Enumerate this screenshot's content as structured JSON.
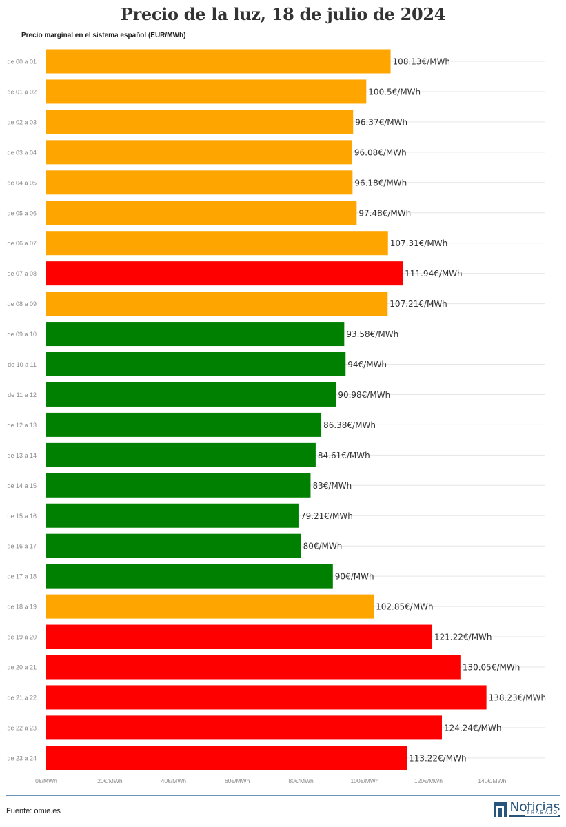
{
  "chart_data": {
    "type": "bar",
    "orientation": "horizontal",
    "title": "Precio de la luz, 18 de julio de 2024",
    "subtitle": "Precio marginal en el sistema español (EUR/MWh)",
    "categories": [
      "de 00 a 01",
      "de 01 a 02",
      "de 02 a 03",
      "de 03 a 04",
      "de 04 a 05",
      "de 05 a 06",
      "de 06 a 07",
      "de 07 a 08",
      "de 08 a 09",
      "de 09 a 10",
      "de 10 a 11",
      "de 11 a 12",
      "de 12 a 13",
      "de 13 a 14",
      "de 14 a 15",
      "de 15 a 16",
      "de 16 a 17",
      "de 17 a 18",
      "de 18 a 19",
      "de 19 a 20",
      "de 20 a 21",
      "de 21 a 22",
      "de 22 a 23",
      "de 23 a 24"
    ],
    "values": [
      108.13,
      100.5,
      96.37,
      96.08,
      96.18,
      97.48,
      107.31,
      111.94,
      107.21,
      93.58,
      94,
      90.98,
      86.38,
      84.61,
      83,
      79.21,
      80,
      90,
      102.85,
      121.22,
      130.05,
      138.23,
      124.24,
      113.22
    ],
    "value_labels": [
      "108.13€/MWh",
      "100.5€/MWh",
      "96.37€/MWh",
      "96.08€/MWh",
      "96.18€/MWh",
      "97.48€/MWh",
      "107.31€/MWh",
      "111.94€/MWh",
      "107.21€/MWh",
      "93.58€/MWh",
      "94€/MWh",
      "90.98€/MWh",
      "86.38€/MWh",
      "84.61€/MWh",
      "83€/MWh",
      "79.21€/MWh",
      "80€/MWh",
      "90€/MWh",
      "102.85€/MWh",
      "121.22€/MWh",
      "130.05€/MWh",
      "138.23€/MWh",
      "124.24€/MWh",
      "113.22€/MWh"
    ],
    "bar_levels": [
      "mid",
      "mid",
      "mid",
      "mid",
      "mid",
      "mid",
      "mid",
      "high",
      "mid",
      "low",
      "low",
      "low",
      "low",
      "low",
      "low",
      "low",
      "low",
      "low",
      "mid",
      "high",
      "high",
      "high",
      "high",
      "high"
    ],
    "colors": {
      "low": "#008000",
      "mid": "#ffa500",
      "high": "#ff0000"
    },
    "xlim": [
      0,
      155
    ],
    "x_ticks": [
      0,
      20,
      40,
      60,
      80,
      100,
      120,
      140
    ],
    "x_tick_labels": [
      "0€/MWh",
      "20€/MWh",
      "40€/MWh",
      "60€/MWh",
      "80€/MWh",
      "100€/MWh",
      "120€/MWh",
      "140€/MWh"
    ],
    "grid": true
  },
  "footer": {
    "source": "Fuente: omie.es",
    "brand_name": "Noticias",
    "brand_sub": "TRABAJO"
  }
}
